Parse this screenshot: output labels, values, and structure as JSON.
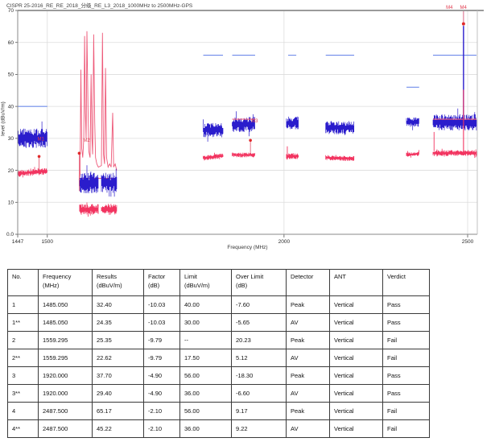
{
  "title": "CISPR 25-2016_RE_RE_2018_分级_RE_L3_2018_1000MHz to 2500MHz-GPS",
  "chart_data": {
    "type": "line",
    "title": "CISPR 25-2016_RE_RE_2018_分级_RE_L3_2018_1000MHz to 2500MHz-GPS",
    "xlabel": "Frequency (MHz)",
    "ylabel": "level (dBuV/m)",
    "x_scale": "log",
    "xlim": [
      1447,
      2530
    ],
    "ylim": [
      0,
      70
    ],
    "grid": true,
    "x_ticks": [
      {
        "v": 1447,
        "label": "1447"
      },
      {
        "v": 1500,
        "label": "1500"
      },
      {
        "v": 2000,
        "label": "2000"
      },
      {
        "v": 2500,
        "label": "2500"
      }
    ],
    "y_ticks": [
      {
        "v": 0,
        "label": "0.0"
      },
      {
        "v": 10,
        "label": "10"
      },
      {
        "v": 20,
        "label": "20"
      },
      {
        "v": 30,
        "label": "30"
      },
      {
        "v": 40,
        "label": "40"
      },
      {
        "v": 50,
        "label": "50"
      },
      {
        "v": 60,
        "label": "60"
      },
      {
        "v": 70,
        "label": "70"
      }
    ],
    "colors": {
      "peak_trace": "#2a1ccc",
      "av_trace": "#f23460",
      "peak_limit": "#6f8bea",
      "av_limit": "#f4647e",
      "marker": "#e02a2a",
      "marker_text": "#e03a4e",
      "gps_curve": "#ee5878",
      "grid": "#dcdcdc",
      "axis": "#8a8a8a"
    },
    "bands": [
      {
        "f1": 1447,
        "f2": 1500,
        "peak_center": 30.0,
        "peak_spread": 2.3,
        "av_center": 19.4,
        "av_spread": 0.8,
        "av_tilt": 0.8
      },
      {
        "f1": 1560,
        "f2": 1596,
        "peak_center": 16.0,
        "peak_spread": 2.4,
        "av_center": 7.8,
        "av_spread": 1.3,
        "av_tilt": 0
      },
      {
        "f1": 1602,
        "f2": 1632,
        "peak_center": 16.0,
        "peak_spread": 2.4,
        "av_center": 7.8,
        "av_spread": 1.3,
        "av_tilt": 0
      },
      {
        "f1": 1813,
        "f2": 1857,
        "peak_center": 32.6,
        "peak_spread": 1.7,
        "av_center": 24.2,
        "av_spread": 0.6,
        "av_tilt": 0.8
      },
      {
        "f1": 1878,
        "f2": 1931,
        "peak_center": 34.4,
        "peak_spread": 1.8,
        "av_center": 24.8,
        "av_spread": 0.55,
        "av_tilt": 0
      },
      {
        "f1": 2006,
        "f2": 2036,
        "peak_center": 34.8,
        "peak_spread": 1.5,
        "av_center": 24.4,
        "av_spread": 0.8,
        "av_tilt": 0
      },
      {
        "f1": 2104,
        "f2": 2178,
        "peak_center": 33.4,
        "peak_spread": 1.6,
        "av_center": 23.8,
        "av_spread": 0.6,
        "av_tilt": -0.3
      },
      {
        "f1": 2321,
        "f2": 2357,
        "peak_center": 35.1,
        "peak_spread": 1.2,
        "av_center": 25.0,
        "av_spread": 0.5,
        "av_tilt": 0.3
      },
      {
        "f1": 2397,
        "f2": 2527,
        "peak_center": 35.0,
        "peak_spread": 1.9,
        "av_center": 25.4,
        "av_spread": 0.7,
        "av_tilt": 0
      }
    ],
    "limit_lines": [
      {
        "detector": "Peak",
        "level": 40.0,
        "f1": 1447,
        "f2": 1500,
        "under": false
      },
      {
        "detector": "AV",
        "level": 30.0,
        "f1": 1447,
        "f2": 1500,
        "under": true
      },
      {
        "detector": "AV",
        "level": 17.5,
        "f1": 1560,
        "f2": 1632,
        "under": true
      },
      {
        "detector": "Peak",
        "level": 56.0,
        "f1": 1813,
        "f2": 1857,
        "under": false
      },
      {
        "detector": "Peak",
        "level": 56.0,
        "f1": 1878,
        "f2": 1931,
        "under": false
      },
      {
        "detector": "Peak",
        "level": 56.0,
        "f1": 2010,
        "f2": 2030,
        "under": false
      },
      {
        "detector": "Peak",
        "level": 56.0,
        "f1": 2104,
        "f2": 2178,
        "under": false
      },
      {
        "detector": "Peak",
        "level": 46.0,
        "f1": 2321,
        "f2": 2357,
        "under": false
      },
      {
        "detector": "Peak",
        "level": 56.0,
        "f1": 2397,
        "f2": 2527,
        "under": false
      },
      {
        "detector": "AV",
        "level": 36.0,
        "f1": 1878,
        "f2": 1931,
        "under": false
      },
      {
        "detector": "AV",
        "level": 36.0,
        "f1": 2397,
        "f2": 2527,
        "under": false
      }
    ],
    "markers": [
      {
        "name": "M1",
        "f": 1485.05,
        "value": 24.35,
        "line_to": 20.0,
        "label_at": 29.3,
        "label_dx": -2
      },
      {
        "name": "M2",
        "f": 1559.295,
        "value": 25.35,
        "line_to": 13.5,
        "label_at": 29.0,
        "label_dx": 5
      },
      {
        "name": "M3",
        "f": 1920.0,
        "value": 29.4,
        "line_to": 25.0,
        "label_at": 35.0,
        "label_dx": 1
      }
    ],
    "extra_spikes": [
      {
        "f": 2008,
        "from": 24.5,
        "to": 27.5
      },
      {
        "f": 2400,
        "from": 26.0,
        "to": 32.0
      }
    ],
    "m4": {
      "f": 2487.5,
      "peak_spike_from": 36.0,
      "peak_spike_to": 65.17,
      "av_spike_from": 26.0,
      "av_spike_to": 45.22,
      "dot_level": 65.8,
      "top_labels": [
        {
          "f": 2445,
          "text": "M4"
        },
        {
          "f": 2487,
          "text": "M4"
        }
      ]
    },
    "gps_curve": [
      [
        1559,
        17
      ],
      [
        1561,
        19
      ],
      [
        1562.5,
        51.5
      ],
      [
        1564,
        27
      ],
      [
        1566,
        24
      ],
      [
        1568,
        30
      ],
      [
        1569.5,
        62
      ],
      [
        1571,
        38
      ],
      [
        1572.5,
        30
      ],
      [
        1574,
        63.5
      ],
      [
        1576,
        40
      ],
      [
        1577.5,
        26
      ],
      [
        1580,
        24
      ],
      [
        1582,
        50
      ],
      [
        1583.5,
        30
      ],
      [
        1585,
        25
      ],
      [
        1587,
        62.5
      ],
      [
        1589,
        35
      ],
      [
        1590.5,
        24
      ],
      [
        1593,
        22
      ],
      [
        1596,
        21
      ],
      [
        1602,
        21.5
      ],
      [
        1604,
        63
      ],
      [
        1606,
        25
      ],
      [
        1608,
        22
      ],
      [
        1610,
        52
      ],
      [
        1612,
        24
      ],
      [
        1615,
        21
      ],
      [
        1618,
        22
      ],
      [
        1621,
        21
      ],
      [
        1624,
        38
      ],
      [
        1626,
        21
      ],
      [
        1629,
        22
      ],
      [
        1632,
        20
      ]
    ]
  },
  "table": {
    "headers": [
      {
        "l1": "No.",
        "l2": ""
      },
      {
        "l1": "Frequency",
        "l2": "(MHz)"
      },
      {
        "l1": "Results",
        "l2": "(dBuV/m)"
      },
      {
        "l1": "Factor",
        "l2": "(dB)"
      },
      {
        "l1": "Limit",
        "l2": "(dBuV/m)"
      },
      {
        "l1": "Over Limit",
        "l2": "(dB)"
      },
      {
        "l1": "Detector",
        "l2": ""
      },
      {
        "l1": "ANT",
        "l2": ""
      },
      {
        "l1": "Verdict",
        "l2": ""
      }
    ],
    "rows": [
      [
        "1",
        "1485.050",
        "32.40",
        "-10.03",
        "40.00",
        "-7.60",
        "Peak",
        "Vertical",
        "Pass"
      ],
      [
        "1**",
        "1485.050",
        "24.35",
        "-10.03",
        "30.00",
        "-5.65",
        "AV",
        "Vertical",
        "Pass"
      ],
      [
        "2",
        "1559.295",
        "25.35",
        "-9.79",
        "--",
        "20.23",
        "Peak",
        "Vertical",
        "Fail"
      ],
      [
        "2**",
        "1559.295",
        "22.62",
        "-9.79",
        "17.50",
        "5.12",
        "AV",
        "Vertical",
        "Fail"
      ],
      [
        "3",
        "1920.000",
        "37.70",
        "-4.90",
        "56.00",
        "-18.30",
        "Peak",
        "Vertical",
        "Pass"
      ],
      [
        "3**",
        "1920.000",
        "29.40",
        "-4.90",
        "36.00",
        "-6.60",
        "AV",
        "Vertical",
        "Pass"
      ],
      [
        "4",
        "2487.500",
        "65.17",
        "-2.10",
        "56.00",
        "9.17",
        "Peak",
        "Vertical",
        "Fail"
      ],
      [
        "4**",
        "2487.500",
        "45.22",
        "-2.10",
        "36.00",
        "9.22",
        "AV",
        "Vertical",
        "Fail"
      ]
    ]
  }
}
